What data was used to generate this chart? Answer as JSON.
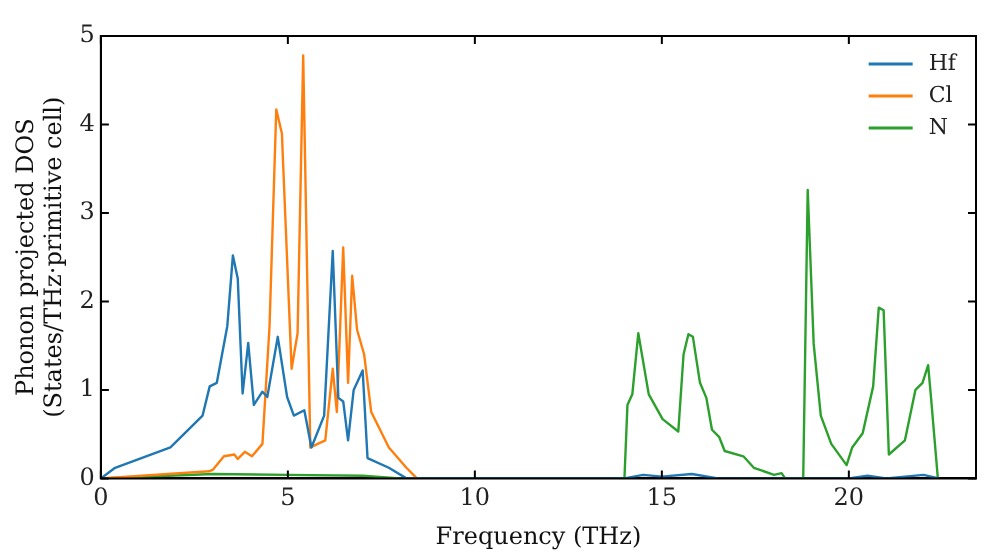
{
  "chart_data": {
    "type": "line",
    "xlabel": "Frequency (THz)",
    "ylabel": "Phonon projected DOS\n(States/THz·primitive cell)",
    "xlim": [
      0,
      23.4
    ],
    "xticks": [
      0,
      5,
      10,
      15,
      20
    ],
    "ylim": [
      0,
      5
    ],
    "yticks": [
      0,
      1,
      2,
      3,
      4,
      5
    ],
    "grid": false,
    "legend": "top right",
    "marker": "none",
    "line_style": "solid",
    "series": [
      {
        "name": "Hf",
        "color": "#1f77b4",
        "x": [
          0,
          0.38,
          1.86,
          2.72,
          2.91,
          3.1,
          3.38,
          3.53,
          3.66,
          3.79,
          3.94,
          4.09,
          4.32,
          4.45,
          4.73,
          4.98,
          5.16,
          5.44,
          5.63,
          5.97,
          6.2,
          6.35,
          6.48,
          6.61,
          6.76,
          7.0,
          7.13,
          7.7,
          8.17,
          14.0,
          14.5,
          15.0,
          15.8,
          16.5,
          20.0,
          20.5,
          21.0,
          22.0,
          22.4
        ],
        "values": [
          0,
          0.12,
          0.35,
          0.71,
          1.04,
          1.08,
          1.72,
          2.52,
          2.26,
          0.96,
          1.53,
          0.83,
          0.98,
          0.92,
          1.6,
          0.92,
          0.71,
          0.77,
          0.35,
          0.71,
          2.57,
          0.91,
          0.87,
          0.43,
          1.0,
          1.22,
          0.23,
          0.12,
          0,
          0,
          0.04,
          0.02,
          0.05,
          0,
          0,
          0.03,
          0,
          0.04,
          0
        ]
      },
      {
        "name": "Cl",
        "color": "#ff7f0e",
        "x": [
          0,
          2.9,
          3.0,
          3.29,
          3.57,
          3.66,
          3.85,
          4.04,
          4.32,
          4.51,
          4.69,
          4.84,
          5.1,
          5.26,
          5.41,
          5.6,
          6.0,
          6.2,
          6.31,
          6.48,
          6.61,
          6.72,
          6.85,
          7.04,
          7.23,
          7.7,
          8.17,
          8.45
        ],
        "values": [
          0,
          0.08,
          0.1,
          0.25,
          0.27,
          0.22,
          0.3,
          0.25,
          0.39,
          1.72,
          4.17,
          3.9,
          1.24,
          1.64,
          4.78,
          0.35,
          0.43,
          1.24,
          0.75,
          2.61,
          1.08,
          2.29,
          1.68,
          1.4,
          0.75,
          0.35,
          0.12,
          0
        ]
      },
      {
        "name": "N",
        "color": "#2ca02c",
        "x": [
          0,
          3.0,
          5.0,
          7.0,
          8.0,
          14.0,
          14.08,
          14.21,
          14.37,
          14.65,
          15.02,
          15.44,
          15.58,
          15.71,
          15.83,
          16.02,
          16.19,
          16.34,
          16.53,
          16.68,
          17.18,
          17.46,
          18.0,
          18.2,
          18.3,
          18.78,
          18.9,
          19.06,
          19.25,
          19.53,
          19.94,
          20.09,
          20.37,
          20.65,
          20.8,
          20.93,
          21.07,
          21.5,
          21.78,
          21.97,
          22.12,
          22.2,
          22.38
        ],
        "values": [
          0,
          0.05,
          0.04,
          0.03,
          0,
          0,
          0.83,
          0.95,
          1.64,
          0.95,
          0.67,
          0.53,
          1.4,
          1.63,
          1.6,
          1.08,
          0.91,
          0.55,
          0.47,
          0.31,
          0.25,
          0.12,
          0.04,
          0.06,
          0,
          0,
          3.26,
          1.52,
          0.71,
          0.39,
          0.15,
          0.35,
          0.51,
          1.04,
          1.93,
          1.9,
          0.27,
          0.43,
          1.0,
          1.08,
          1.28,
          0.9,
          0
        ]
      }
    ]
  }
}
